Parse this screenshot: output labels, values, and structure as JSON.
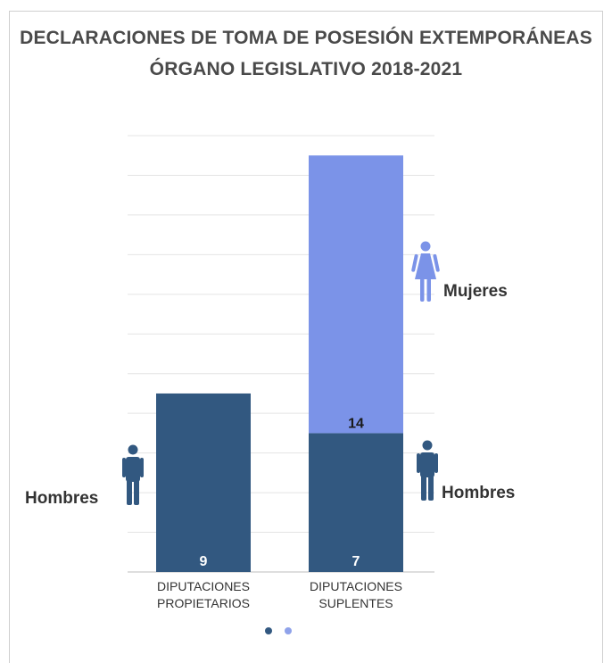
{
  "title_line1": "DECLARACIONES DE TOMA DE POSESIÓN EXTEMPORÁNEAS",
  "title_line2": "ÓRGANO LEGISLATIVO 2018-2021",
  "colors": {
    "hombres": "#325880",
    "mujeres": "#7b93e8",
    "grid": "#e4e4e4",
    "dot_active": "#325880",
    "dot_inactive": "#8fa2ea"
  },
  "icons": {
    "male": "man-figure-icon",
    "female": "woman-figure-icon"
  },
  "pagination": {
    "count": 2,
    "active": 0
  },
  "chart_data": {
    "type": "bar",
    "stacked": true,
    "categories": [
      "DIPUTACIONES PROPIETARIOS",
      "DIPUTACIONES SUPLENTES"
    ],
    "category_lines": [
      [
        "DIPUTACIONES",
        "PROPIETARIOS"
      ],
      [
        "DIPUTACIONES",
        "SUPLENTES"
      ]
    ],
    "series": [
      {
        "name": "Hombres",
        "values": [
          9,
          7
        ]
      },
      {
        "name": "Mujeres",
        "values": [
          0,
          14
        ]
      }
    ],
    "data_labels": [
      {
        "category": 0,
        "series": 0,
        "text": "9"
      },
      {
        "category": 1,
        "series": 0,
        "text": "7"
      },
      {
        "category": 1,
        "series": 1,
        "text": "14"
      }
    ],
    "ylim": [
      0,
      22
    ],
    "grid": true,
    "axis_labels_shown": false
  }
}
